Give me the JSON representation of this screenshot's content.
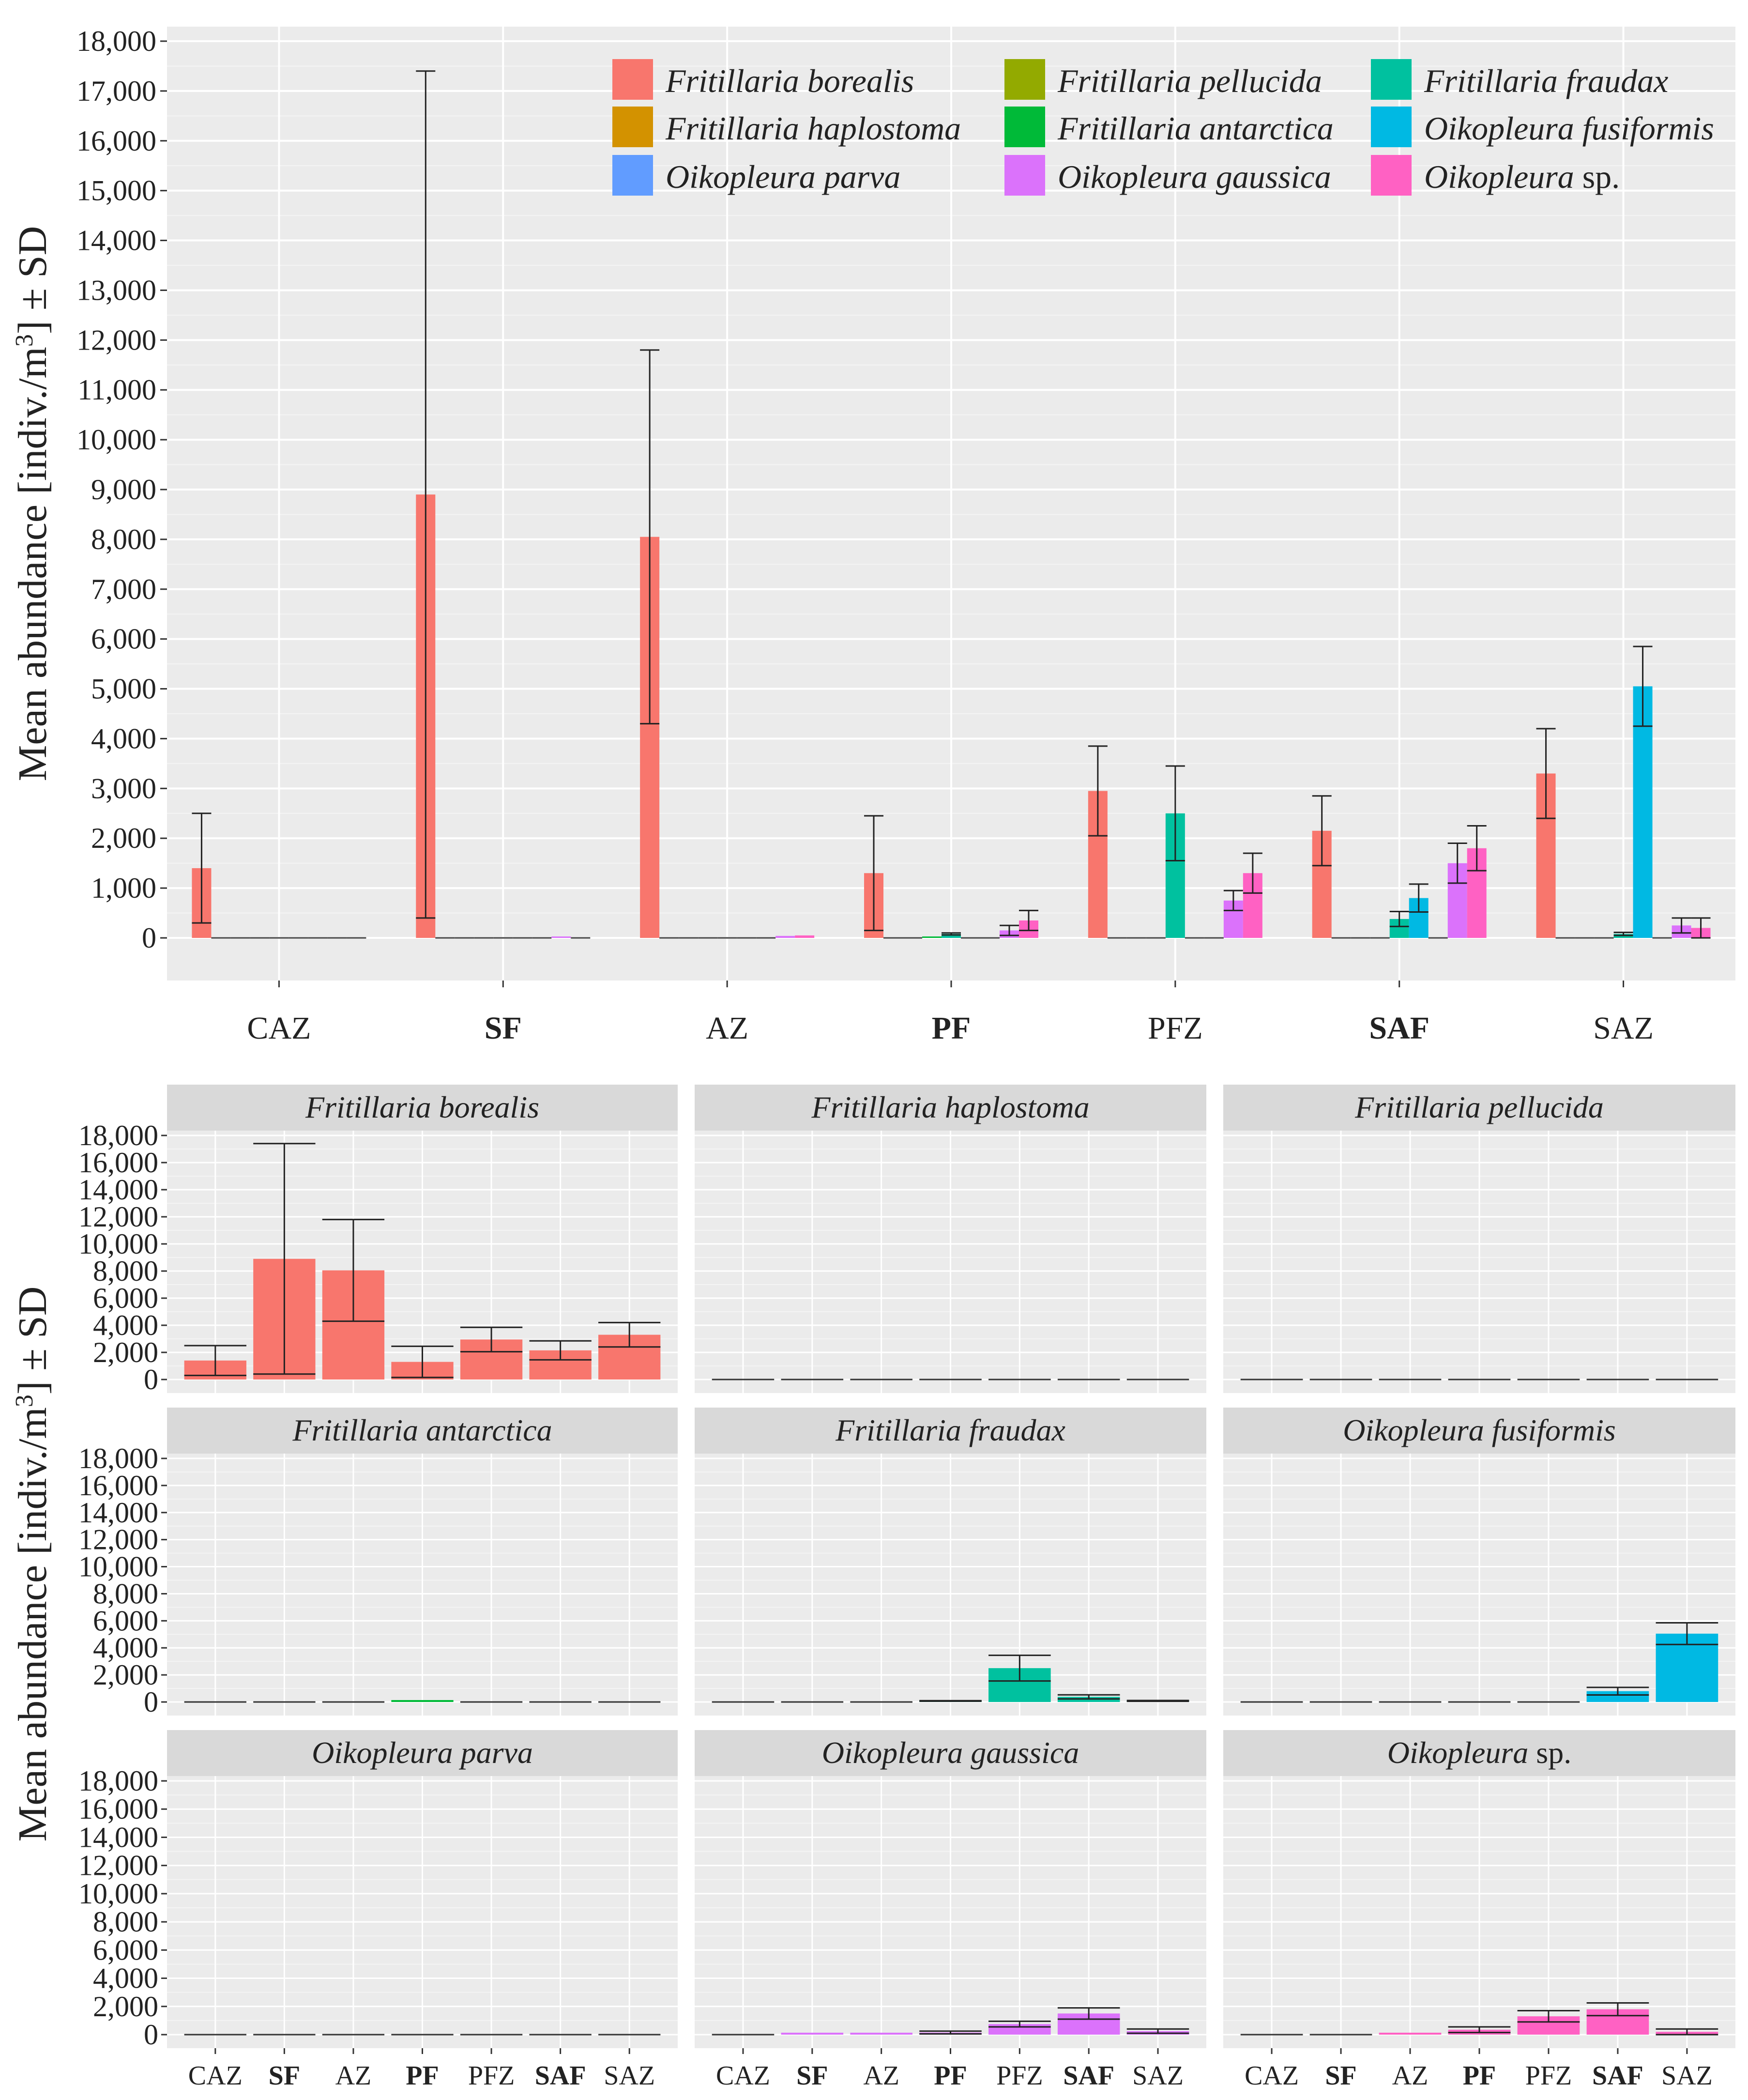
{
  "chart_data": [
    {
      "type": "bar",
      "title": "",
      "xlabel": "",
      "ylabel": "Mean abundance [indiv./m3] ± SD",
      "ylim": [
        0,
        18000
      ],
      "yticks": [
        "0",
        "1,000",
        "2,000",
        "3,000",
        "4,000",
        "5,000",
        "6,000",
        "7,000",
        "8,000",
        "9,000",
        "10,000",
        "11,000",
        "12,000",
        "13,000",
        "14,000",
        "15,000",
        "16,000",
        "17,000",
        "18,000"
      ],
      "categories": [
        "CAZ",
        "SF",
        "AZ",
        "PF",
        "PFZ",
        "SAF",
        "SAZ"
      ],
      "bold_categories": [
        "SF",
        "PF",
        "SAF"
      ],
      "legend_position": "top-right",
      "series": [
        {
          "name": "Fritillaria borealis",
          "values": [
            1400,
            8900,
            8050,
            1300,
            2950,
            2150,
            3300
          ],
          "sd": [
            1100,
            8500,
            3750,
            1150,
            900,
            700,
            900
          ]
        },
        {
          "name": "Fritillaria haplostoma",
          "values": [
            0,
            0,
            0,
            0,
            0,
            0,
            0
          ],
          "sd": [
            0,
            0,
            0,
            0,
            0,
            0,
            0
          ]
        },
        {
          "name": "Fritillaria pellucida",
          "values": [
            0,
            0,
            0,
            0,
            0,
            0,
            0
          ],
          "sd": [
            0,
            0,
            0,
            0,
            0,
            0,
            0
          ]
        },
        {
          "name": "Fritillaria antarctica",
          "values": [
            0,
            0,
            0,
            20,
            0,
            0,
            0
          ],
          "sd": [
            0,
            0,
            0,
            0,
            0,
            0,
            0
          ]
        },
        {
          "name": "Fritillaria fraudax",
          "values": [
            0,
            0,
            0,
            80,
            2500,
            380,
            80
          ],
          "sd": [
            0,
            0,
            0,
            20,
            950,
            150,
            30
          ]
        },
        {
          "name": "Oikopleura fusiformis",
          "values": [
            0,
            0,
            0,
            0,
            0,
            800,
            5050
          ],
          "sd": [
            0,
            0,
            0,
            0,
            0,
            280,
            800
          ]
        },
        {
          "name": "Oikopleura parva",
          "values": [
            0,
            0,
            0,
            0,
            0,
            0,
            0
          ],
          "sd": [
            0,
            0,
            0,
            0,
            0,
            0,
            0
          ]
        },
        {
          "name": "Oikopleura gaussica",
          "values": [
            0,
            20,
            40,
            150,
            750,
            1500,
            250
          ],
          "sd": [
            0,
            0,
            0,
            100,
            200,
            400,
            150
          ]
        },
        {
          "name": "Oikopleura sp.",
          "values": [
            0,
            0,
            50,
            350,
            1300,
            1800,
            200
          ],
          "sd": [
            0,
            0,
            0,
            200,
            400,
            450,
            200
          ]
        }
      ]
    },
    {
      "type": "bar",
      "layout": "faceted 3x3, one panel per taxon",
      "ylabel": "Mean abundance [indiv./m3] ± SD",
      "ylim": [
        0,
        18000
      ],
      "yticks": [
        "0",
        "2,000",
        "4,000",
        "6,000",
        "8,000",
        "10,000",
        "12,000",
        "14,000",
        "16,000",
        "18,000"
      ],
      "categories": [
        "CAZ",
        "SF",
        "AZ",
        "PF",
        "PFZ",
        "SAF",
        "SAZ"
      ],
      "panels": [
        {
          "title": "Fritillaria borealis",
          "values": [
            1400,
            8900,
            8050,
            1300,
            2950,
            2150,
            3300
          ],
          "sd": [
            1100,
            8500,
            3750,
            1150,
            900,
            700,
            900
          ]
        },
        {
          "title": "Fritillaria haplostoma",
          "values": [
            0,
            0,
            0,
            0,
            0,
            0,
            0
          ],
          "sd": [
            0,
            0,
            0,
            0,
            0,
            0,
            0
          ]
        },
        {
          "title": "Fritillaria pellucida",
          "values": [
            0,
            0,
            0,
            0,
            0,
            0,
            0
          ],
          "sd": [
            0,
            0,
            0,
            0,
            0,
            0,
            0
          ]
        },
        {
          "title": "Fritillaria antarctica",
          "values": [
            0,
            0,
            0,
            20,
            0,
            0,
            0
          ],
          "sd": [
            0,
            0,
            0,
            0,
            0,
            0,
            0
          ]
        },
        {
          "title": "Fritillaria fraudax",
          "values": [
            0,
            0,
            0,
            80,
            2500,
            380,
            80
          ],
          "sd": [
            0,
            0,
            0,
            20,
            950,
            150,
            30
          ]
        },
        {
          "title": "Oikopleura fusiformis",
          "values": [
            0,
            0,
            0,
            0,
            0,
            800,
            5050
          ],
          "sd": [
            0,
            0,
            0,
            0,
            0,
            280,
            800
          ]
        },
        {
          "title": "Oikopleura parva",
          "values": [
            0,
            0,
            0,
            0,
            0,
            0,
            0
          ],
          "sd": [
            0,
            0,
            0,
            0,
            0,
            0,
            0
          ]
        },
        {
          "title": "Oikopleura gaussica",
          "values": [
            0,
            20,
            40,
            150,
            750,
            1500,
            250
          ],
          "sd": [
            0,
            0,
            0,
            100,
            200,
            400,
            150
          ]
        },
        {
          "title": "Oikopleura sp.",
          "values": [
            0,
            0,
            50,
            350,
            1300,
            1800,
            200
          ],
          "sd": [
            0,
            0,
            0,
            200,
            400,
            450,
            200
          ]
        }
      ]
    }
  ],
  "colors": {
    "Fritillaria borealis": "#F8766D",
    "Fritillaria haplostoma": "#D39200",
    "Fritillaria pellucida": "#93AA00",
    "Fritillaria antarctica": "#00BA38",
    "Fritillaria fraudax": "#00C19F",
    "Oikopleura fusiformis": "#00B9E3",
    "Oikopleura parva": "#619CFF",
    "Oikopleura gaussica": "#DB72FB",
    "Oikopleura sp.": "#FF61C3",
    "panel_bg": "#EBEBEB",
    "strip_bg": "#D9D9D9",
    "grid": "#FFFFFF"
  },
  "legend_order": [
    "Fritillaria borealis",
    "Fritillaria pellucida",
    "Fritillaria fraudax",
    "Fritillaria haplostoma",
    "Fritillaria antarctica",
    "Oikopleura fusiformis",
    "Oikopleura parva",
    "Oikopleura gaussica",
    "Oikopleura sp."
  ]
}
